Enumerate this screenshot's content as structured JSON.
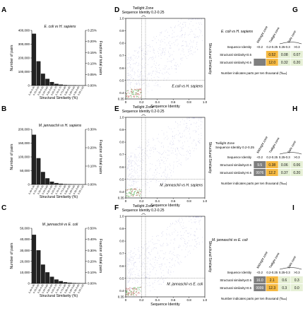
{
  "panels": {
    "hist": [
      {
        "letter": "A",
        "label": "E. coli vs H. sapiens",
        "ylabel": "Number of pairs",
        "y2label": "Fraction of total pairs",
        "xlabel": "Structural Similarity (%)",
        "y_ticks": [
          "0",
          "100,000",
          "200,000",
          "300,000",
          "400,000"
        ],
        "y2_ticks": [
          "0.00%",
          "0.05%",
          "0.10%",
          "0.15%",
          "0.20%",
          "0.25%"
        ]
      },
      {
        "letter": "B",
        "label": "M. jannaschii vs H. sapiens",
        "ylabel": "Number of pairs",
        "y2label": "Fraction of total pairs",
        "xlabel": "Structural Similarity (%)",
        "y_ticks": [
          "0",
          "50,000",
          "100,000",
          "150,000",
          "200,000"
        ],
        "y2_ticks": [
          "0.00%",
          "0.10%",
          "0.20%",
          "0.30%"
        ]
      },
      {
        "letter": "C",
        "label": "M. jannaschii vs E. coli",
        "ylabel": "Number of pairs",
        "y2label": "Fraction of total pairs",
        "xlabel": "Structural Similarity (%)",
        "y_ticks": [
          "0",
          "10,000",
          "20,000",
          "30,000",
          "40,000",
          "50,000"
        ],
        "y2_ticks": [
          "0.00%",
          "0.10%",
          "0.20%",
          "0.30%",
          "0.40%",
          "0.50%"
        ]
      }
    ],
    "scatter": [
      {
        "letter": "D",
        "label": "E.coli vs H. sapiens"
      },
      {
        "letter": "E",
        "label": "M. jannaschii vs H. sapiens"
      },
      {
        "letter": "F",
        "label": "M. jannaschii vs E. coli"
      }
    ],
    "scatter_common": {
      "twilight_title": "Twilight Zone",
      "twilight_range": "Sequence Identity 0.2-0.25",
      "xlabel": "Sequence Identity",
      "ylabel": "Structural Similarity",
      "x_ticks": [
        "0",
        "0.2",
        "0.4",
        "0.6",
        "0.8",
        "1.0"
      ],
      "y_ticks": [
        "0.35",
        "0.4",
        "0.5",
        "0.6",
        "0.7",
        "0.8",
        "0.9",
        "1.0"
      ]
    },
    "tables": [
      {
        "letter": "G",
        "title": "E. coli vs H. sapiens",
        "zone_labels": [
          "Midnight zone",
          "Twilight zone",
          "Safe zone"
        ],
        "row_header": "Sequence Identity",
        "col_headers": [
          "<0.2",
          "0.2-0.25",
          "0.25-0.3",
          ">0.3"
        ],
        "rows": [
          {
            "label": "Structural similarity<0.5",
            "values": [
              "",
              "0.52",
              "0.08",
              "0.07"
            ]
          },
          {
            "label": "Structural similarity>0.5",
            "values": [
              "",
              "12.0",
              "0.32",
              "0.20"
            ]
          }
        ],
        "footer": "Number indicates parts per ten thousand (‱)"
      },
      {
        "letter": "H",
        "title": "Twilight Zone\nSequence Identity 0.2-0.25",
        "zone_labels": [
          "Midnight zone",
          "Twilight zone",
          "Safe zone"
        ],
        "row_header": "Sequence Identity",
        "col_headers": [
          "<0.2",
          "0.2-0.25",
          "0.25-0.3",
          ">0.3"
        ],
        "rows": [
          {
            "label": "Structural similarity≤0.5",
            "values": [
              "9.5",
              "0.38",
              "0.06",
              "0.06"
            ]
          },
          {
            "label": "Structural similarity>0.5",
            "values": [
              "9976",
              "12.2",
              "0.37",
              "0.20"
            ]
          }
        ],
        "footer": "Number indicates parts per ten thousand (‱)"
      },
      {
        "letter": "I",
        "title": "M. jannaschii vs E. coli",
        "zone_labels": [
          "Midnight zone",
          "Twilight zone",
          "Safe zone"
        ],
        "row_header": "Sequence Identity",
        "col_headers": [
          "<0.2",
          "0.2-0.25",
          "0.25-0.3",
          ">0.3"
        ],
        "rows": [
          {
            "label": "Structural similarity≤0.5",
            "values": [
              "16.0",
              "2.1",
              "0.6",
              "0.3"
            ]
          },
          {
            "label": "Structural similarity>0.5",
            "values": [
              "9999",
              "12.3",
              "0.3",
              "0.0"
            ]
          }
        ],
        "footer": "Number indicates parts per ten thousand (‱)"
      }
    ]
  },
  "colors": {
    "bar": "#222222",
    "scatter_cloud": "#a9a9d8",
    "scatter_core": "#c0504d",
    "scatter_green": "#5cb85c",
    "cell_dark": "#7f7f7f",
    "cell_orange": "#f5b942",
    "cell_green": "#e6f0d6"
  },
  "chart_data": [
    {
      "type": "bar",
      "title": "E. coli vs H. sapiens",
      "xlabel": "Structural Similarity (%)",
      "ylabel": "Number of pairs",
      "categories": [
        "0.40-0.45",
        "0.45-0.50",
        "0.50-0.55",
        "0.55-0.60",
        "0.60-0.65",
        "0.65-0.70",
        "0.70-0.75",
        "0.75-0.80",
        "0.80-0.85",
        "0.85-0.90",
        "0.90-0.95",
        "0.95-1.00"
      ],
      "values": [
        375000,
        175000,
        85000,
        48000,
        25000,
        12000,
        6000,
        3000,
        1500,
        800,
        400,
        200
      ],
      "ylim": [
        0,
        400000
      ]
    },
    {
      "type": "bar",
      "title": "M. jannaschii vs H. sapiens",
      "xlabel": "Structural Similarity (%)",
      "ylabel": "Number of pairs",
      "categories": [
        "0.40-0.45",
        "0.45-0.50",
        "0.50-0.55",
        "0.55-0.60",
        "0.60-0.65",
        "0.65-0.70",
        "0.70-0.75",
        "0.75-0.80",
        "0.80-0.85",
        "0.85-0.90",
        "0.90-0.95",
        "0.95-1.00"
      ],
      "values": [
        180000,
        95000,
        45000,
        22000,
        10000,
        5000,
        2500,
        1200,
        600,
        300,
        150,
        80
      ],
      "ylim": [
        0,
        200000
      ]
    },
    {
      "type": "bar",
      "title": "M. jannaschii vs E. coli",
      "xlabel": "Structural Similarity (%)",
      "ylabel": "Number of pairs",
      "categories": [
        "0.40-0.45",
        "0.45-0.50",
        "0.50-0.55",
        "0.55-0.60",
        "0.60-0.65",
        "0.65-0.70",
        "0.70-0.75",
        "0.75-0.80",
        "0.80-0.85",
        "0.85-0.90",
        "0.90-0.95",
        "0.95-1.00"
      ],
      "values": [
        44000,
        30000,
        17000,
        10000,
        6000,
        3500,
        2000,
        1000,
        600,
        300,
        150,
        80
      ],
      "ylim": [
        0,
        50000
      ]
    }
  ]
}
